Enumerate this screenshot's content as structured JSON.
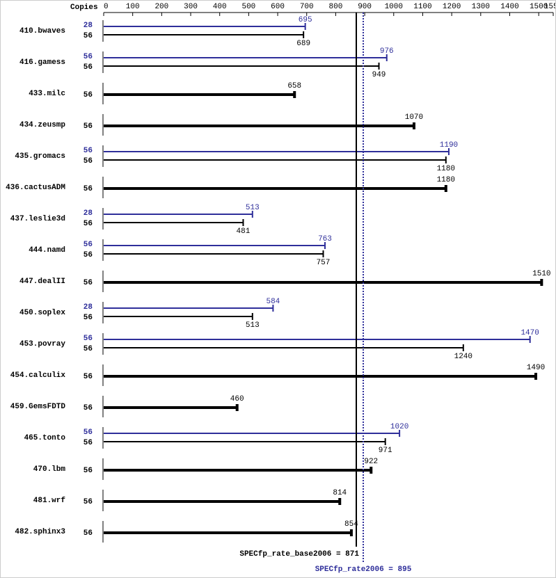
{
  "chart_data": {
    "type": "spec-bar",
    "copies_label": "Copies",
    "categories": [
      "410.bwaves",
      "416.gamess",
      "433.milc",
      "434.zeusmp",
      "435.gromacs",
      "436.cactusADM",
      "437.leslie3d",
      "444.namd",
      "447.dealII",
      "450.soplex",
      "453.povray",
      "454.calculix",
      "459.GemsFDTD",
      "465.tonto",
      "470.lbm",
      "481.wrf",
      "482.sphinx3"
    ],
    "series": [
      {
        "color": "#2e2e9a",
        "copies": [
          28,
          56,
          null,
          null,
          56,
          null,
          28,
          56,
          null,
          28,
          56,
          null,
          null,
          56,
          null,
          null,
          null
        ],
        "values": [
          695,
          976,
          null,
          null,
          1190,
          null,
          513,
          763,
          null,
          584,
          1470,
          null,
          null,
          1020,
          null,
          null,
          null
        ]
      },
      {
        "color": "#000000",
        "copies": [
          56,
          56,
          56,
          56,
          56,
          56,
          56,
          56,
          56,
          56,
          56,
          56,
          56,
          56,
          56,
          56,
          56
        ],
        "values": [
          689,
          949,
          658,
          1070,
          1180,
          1180,
          481,
          757,
          1510,
          513,
          1240,
          1490,
          460,
          971,
          922,
          814,
          854
        ]
      }
    ],
    "xlim": [
      0,
      1550
    ],
    "xticks": [
      0,
      100,
      200,
      300,
      400,
      500,
      600,
      700,
      800,
      900,
      1000,
      1100,
      1200,
      1300,
      1400,
      1500,
      1550
    ],
    "reference_lines": [
      {
        "label": "SPECfp_rate_base2006 = 871",
        "value": 871,
        "color": "#000000",
        "dashed": false
      },
      {
        "label": "SPECfp_rate2006 = 895",
        "value": 895,
        "color": "#2e2e9a",
        "dashed": true
      }
    ]
  }
}
